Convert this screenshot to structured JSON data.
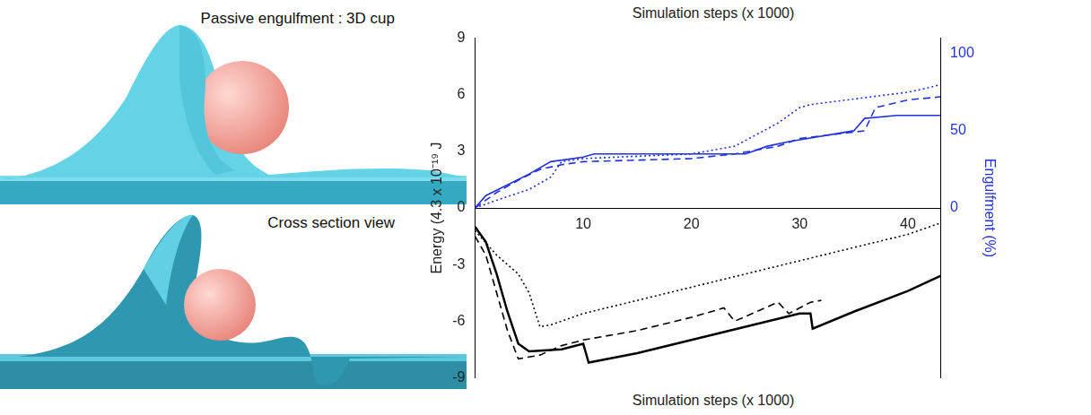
{
  "chart_data": {
    "type": "line",
    "annotations": [
      "Passive engulfment : 3D cup",
      "Cross section view"
    ],
    "xlabel": "Simulation steps (x 1000)",
    "ylabel": "Energy (4.3 x 10⁻¹⁹ J",
    "y2label": "Engulfment (%)",
    "xlim": [
      0,
      43
    ],
    "xticks": [
      10,
      20,
      30,
      40
    ],
    "ylim": [
      -9,
      9
    ],
    "yticks": [
      -9,
      -6,
      -3,
      0,
      3,
      6,
      9
    ],
    "y2lim": [
      -110,
      110
    ],
    "y2ticks": [
      0,
      50,
      100
    ],
    "grid": false,
    "series": [
      {
        "color": "#000000",
        "line_style": "solid",
        "axis": "y",
        "x": [
          0,
          1,
          2,
          3,
          4,
          5,
          8,
          10,
          10.5,
          15,
          20,
          25,
          30,
          31,
          31.2,
          35,
          40,
          43
        ],
        "values": [
          -1,
          -1.8,
          -3.5,
          -5.5,
          -7.2,
          -7.6,
          -7.5,
          -7.2,
          -8.2,
          -7.7,
          -7.0,
          -6.3,
          -5.6,
          -5.6,
          -6.4,
          -5.5,
          -4.4,
          -3.6
        ]
      },
      {
        "color": "#000000",
        "line_style": "dashed",
        "axis": "y",
        "x": [
          0,
          1,
          2,
          3,
          4,
          6,
          8,
          10,
          15,
          20,
          23,
          24,
          28,
          29,
          31,
          32
        ],
        "values": [
          -1.5,
          -2.5,
          -4.5,
          -6.5,
          -8,
          -7.8,
          -7.3,
          -7,
          -6.5,
          -5.8,
          -5.3,
          -6,
          -5,
          -5.6,
          -5,
          -4.9
        ]
      },
      {
        "color": "#000000",
        "line_style": "dotted",
        "axis": "y",
        "x": [
          0,
          2,
          4,
          5,
          6,
          7,
          10,
          20,
          30,
          40,
          43
        ],
        "values": [
          -1.2,
          -2.5,
          -3.5,
          -4.5,
          -6.3,
          -6.2,
          -5.6,
          -4.2,
          -2.8,
          -1.4,
          -0.8
        ]
      },
      {
        "color": "#2233dd",
        "line_style": "solid",
        "axis": "y2",
        "x": [
          0,
          1,
          3,
          5,
          7,
          10,
          11,
          25,
          27,
          29,
          35,
          36,
          39,
          43
        ],
        "values": [
          0,
          8,
          15,
          22,
          30,
          33,
          35,
          35,
          40,
          43,
          50,
          58,
          60,
          60
        ]
      },
      {
        "color": "#2233dd",
        "line_style": "dashed",
        "axis": "y2",
        "x": [
          0,
          2,
          4,
          6,
          8,
          10,
          20,
          24,
          28,
          30,
          36,
          37,
          40,
          43
        ],
        "values": [
          0,
          10,
          18,
          25,
          28,
          30,
          32,
          35,
          40,
          45,
          50,
          65,
          70,
          72
        ]
      },
      {
        "color": "#2233dd",
        "line_style": "dotted",
        "axis": "y2",
        "x": [
          0,
          2,
          5,
          7,
          8,
          10,
          20,
          24,
          28,
          30,
          31,
          40,
          42,
          43
        ],
        "values": [
          0,
          5,
          12,
          20,
          30,
          32,
          35,
          40,
          55,
          65,
          67,
          75,
          78,
          80
        ]
      }
    ]
  }
}
